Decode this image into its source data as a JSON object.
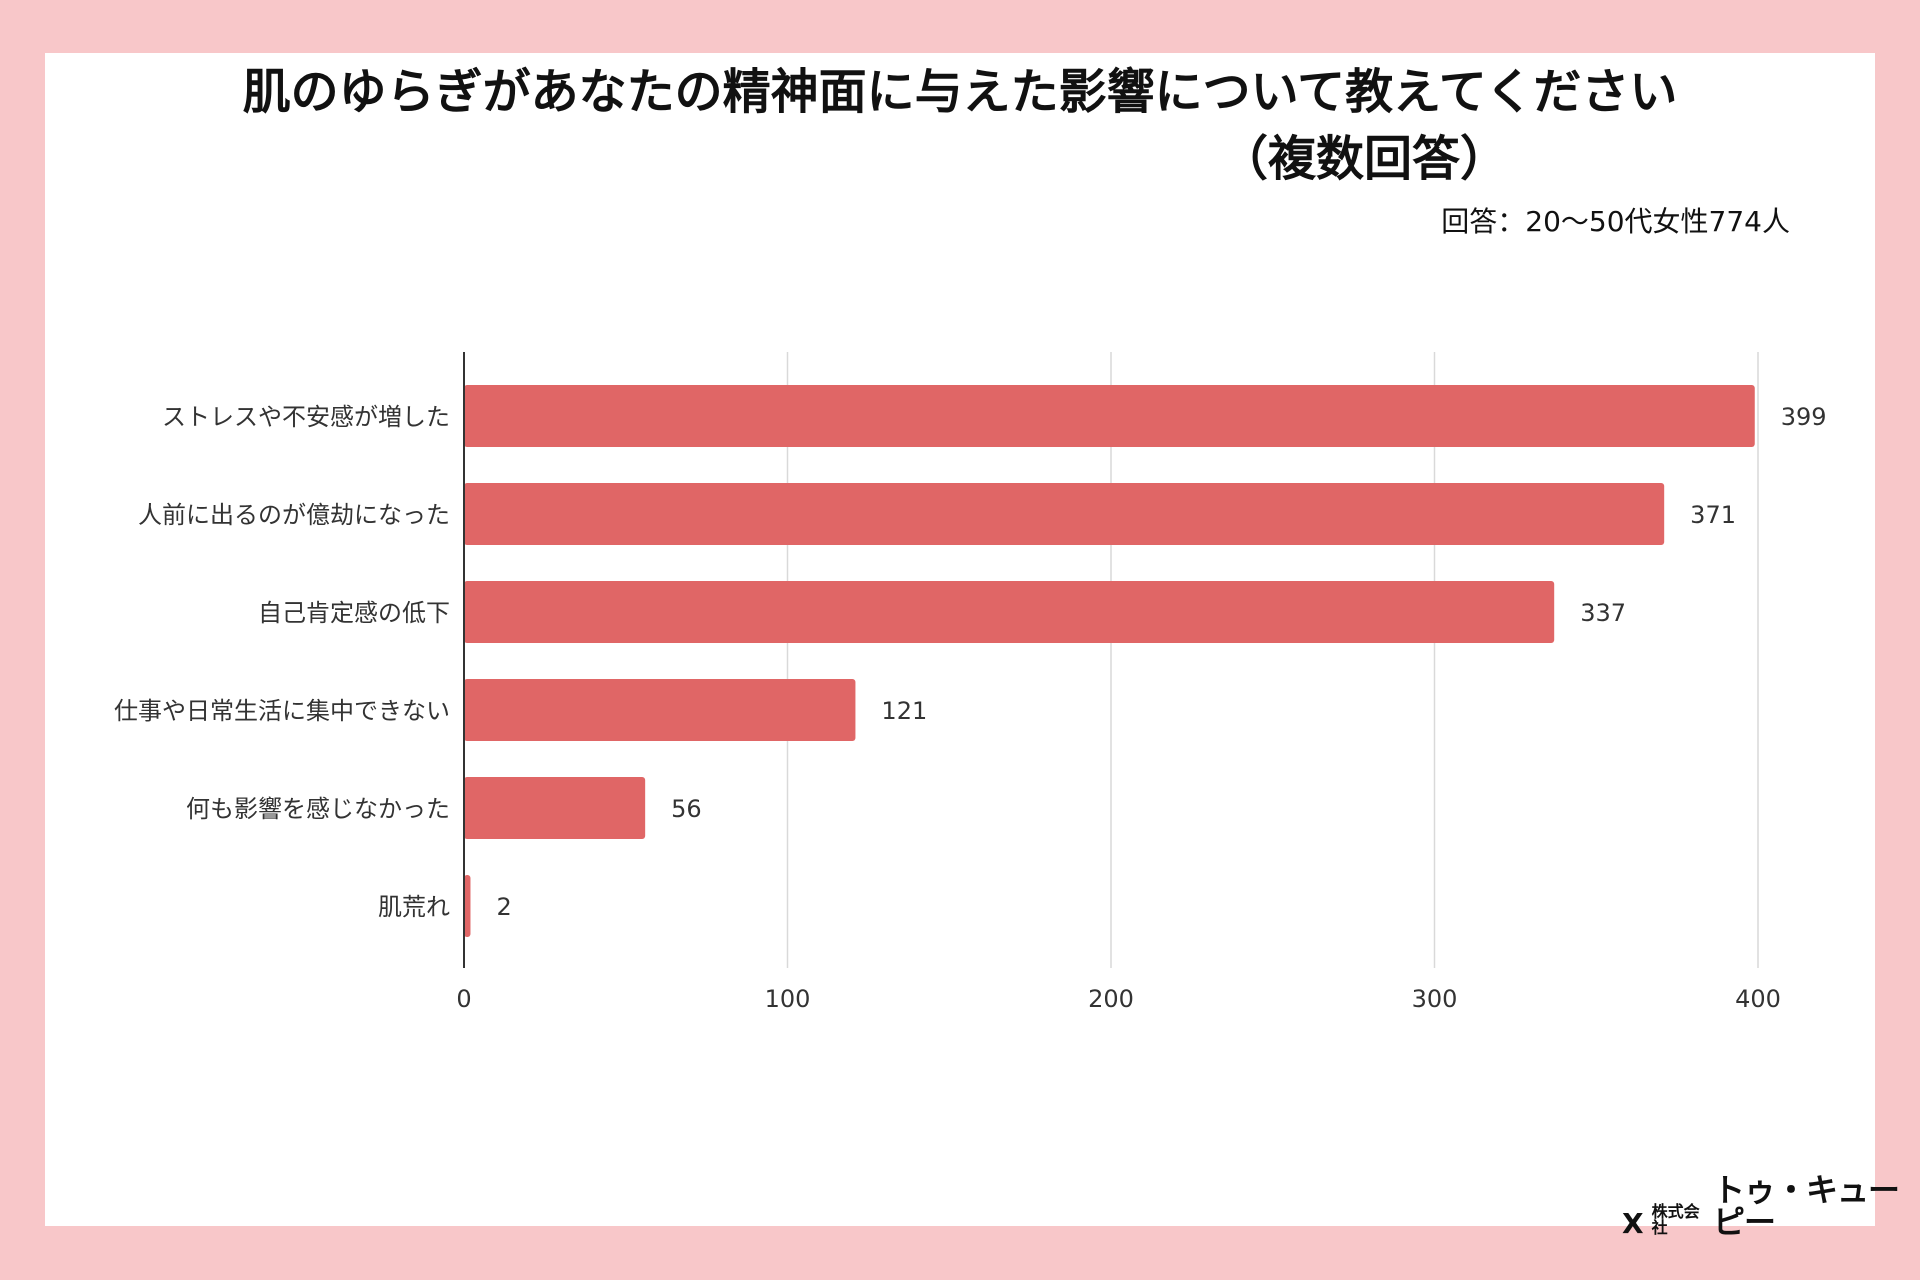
{
  "header": {
    "title": "肌のゆらぎがあなたの精神面に与えた影響について教えてください",
    "subtitle": "（複数回答）",
    "respondents": "回答：20〜50代女性774人"
  },
  "logo": {
    "mark": "Ⅹ",
    "prefix": "株式会社",
    "name": "トゥ・キューピー"
  },
  "colors": {
    "bar": "#e06666",
    "background": "#f8c7c9",
    "grid": "#d9d9d9",
    "axis": "#333333"
  },
  "chart_data": {
    "type": "bar",
    "orientation": "horizontal",
    "title": "肌のゆらぎがあなたの精神面に与えた影響について教えてください（複数回答）",
    "categories": [
      "ストレスや不安感が増した",
      "人前に出るのが億劫になった",
      "自己肯定感の低下",
      "仕事や日常生活に集中できない",
      "何も影響を感じなかった",
      "肌荒れ"
    ],
    "values": [
      399,
      371,
      337,
      121,
      56,
      2
    ],
    "xlim": [
      0,
      400
    ],
    "xticks": [
      0,
      100,
      200,
      300,
      400
    ],
    "xlabel": "",
    "ylabel": "",
    "grid": true,
    "data_labels": true
  }
}
